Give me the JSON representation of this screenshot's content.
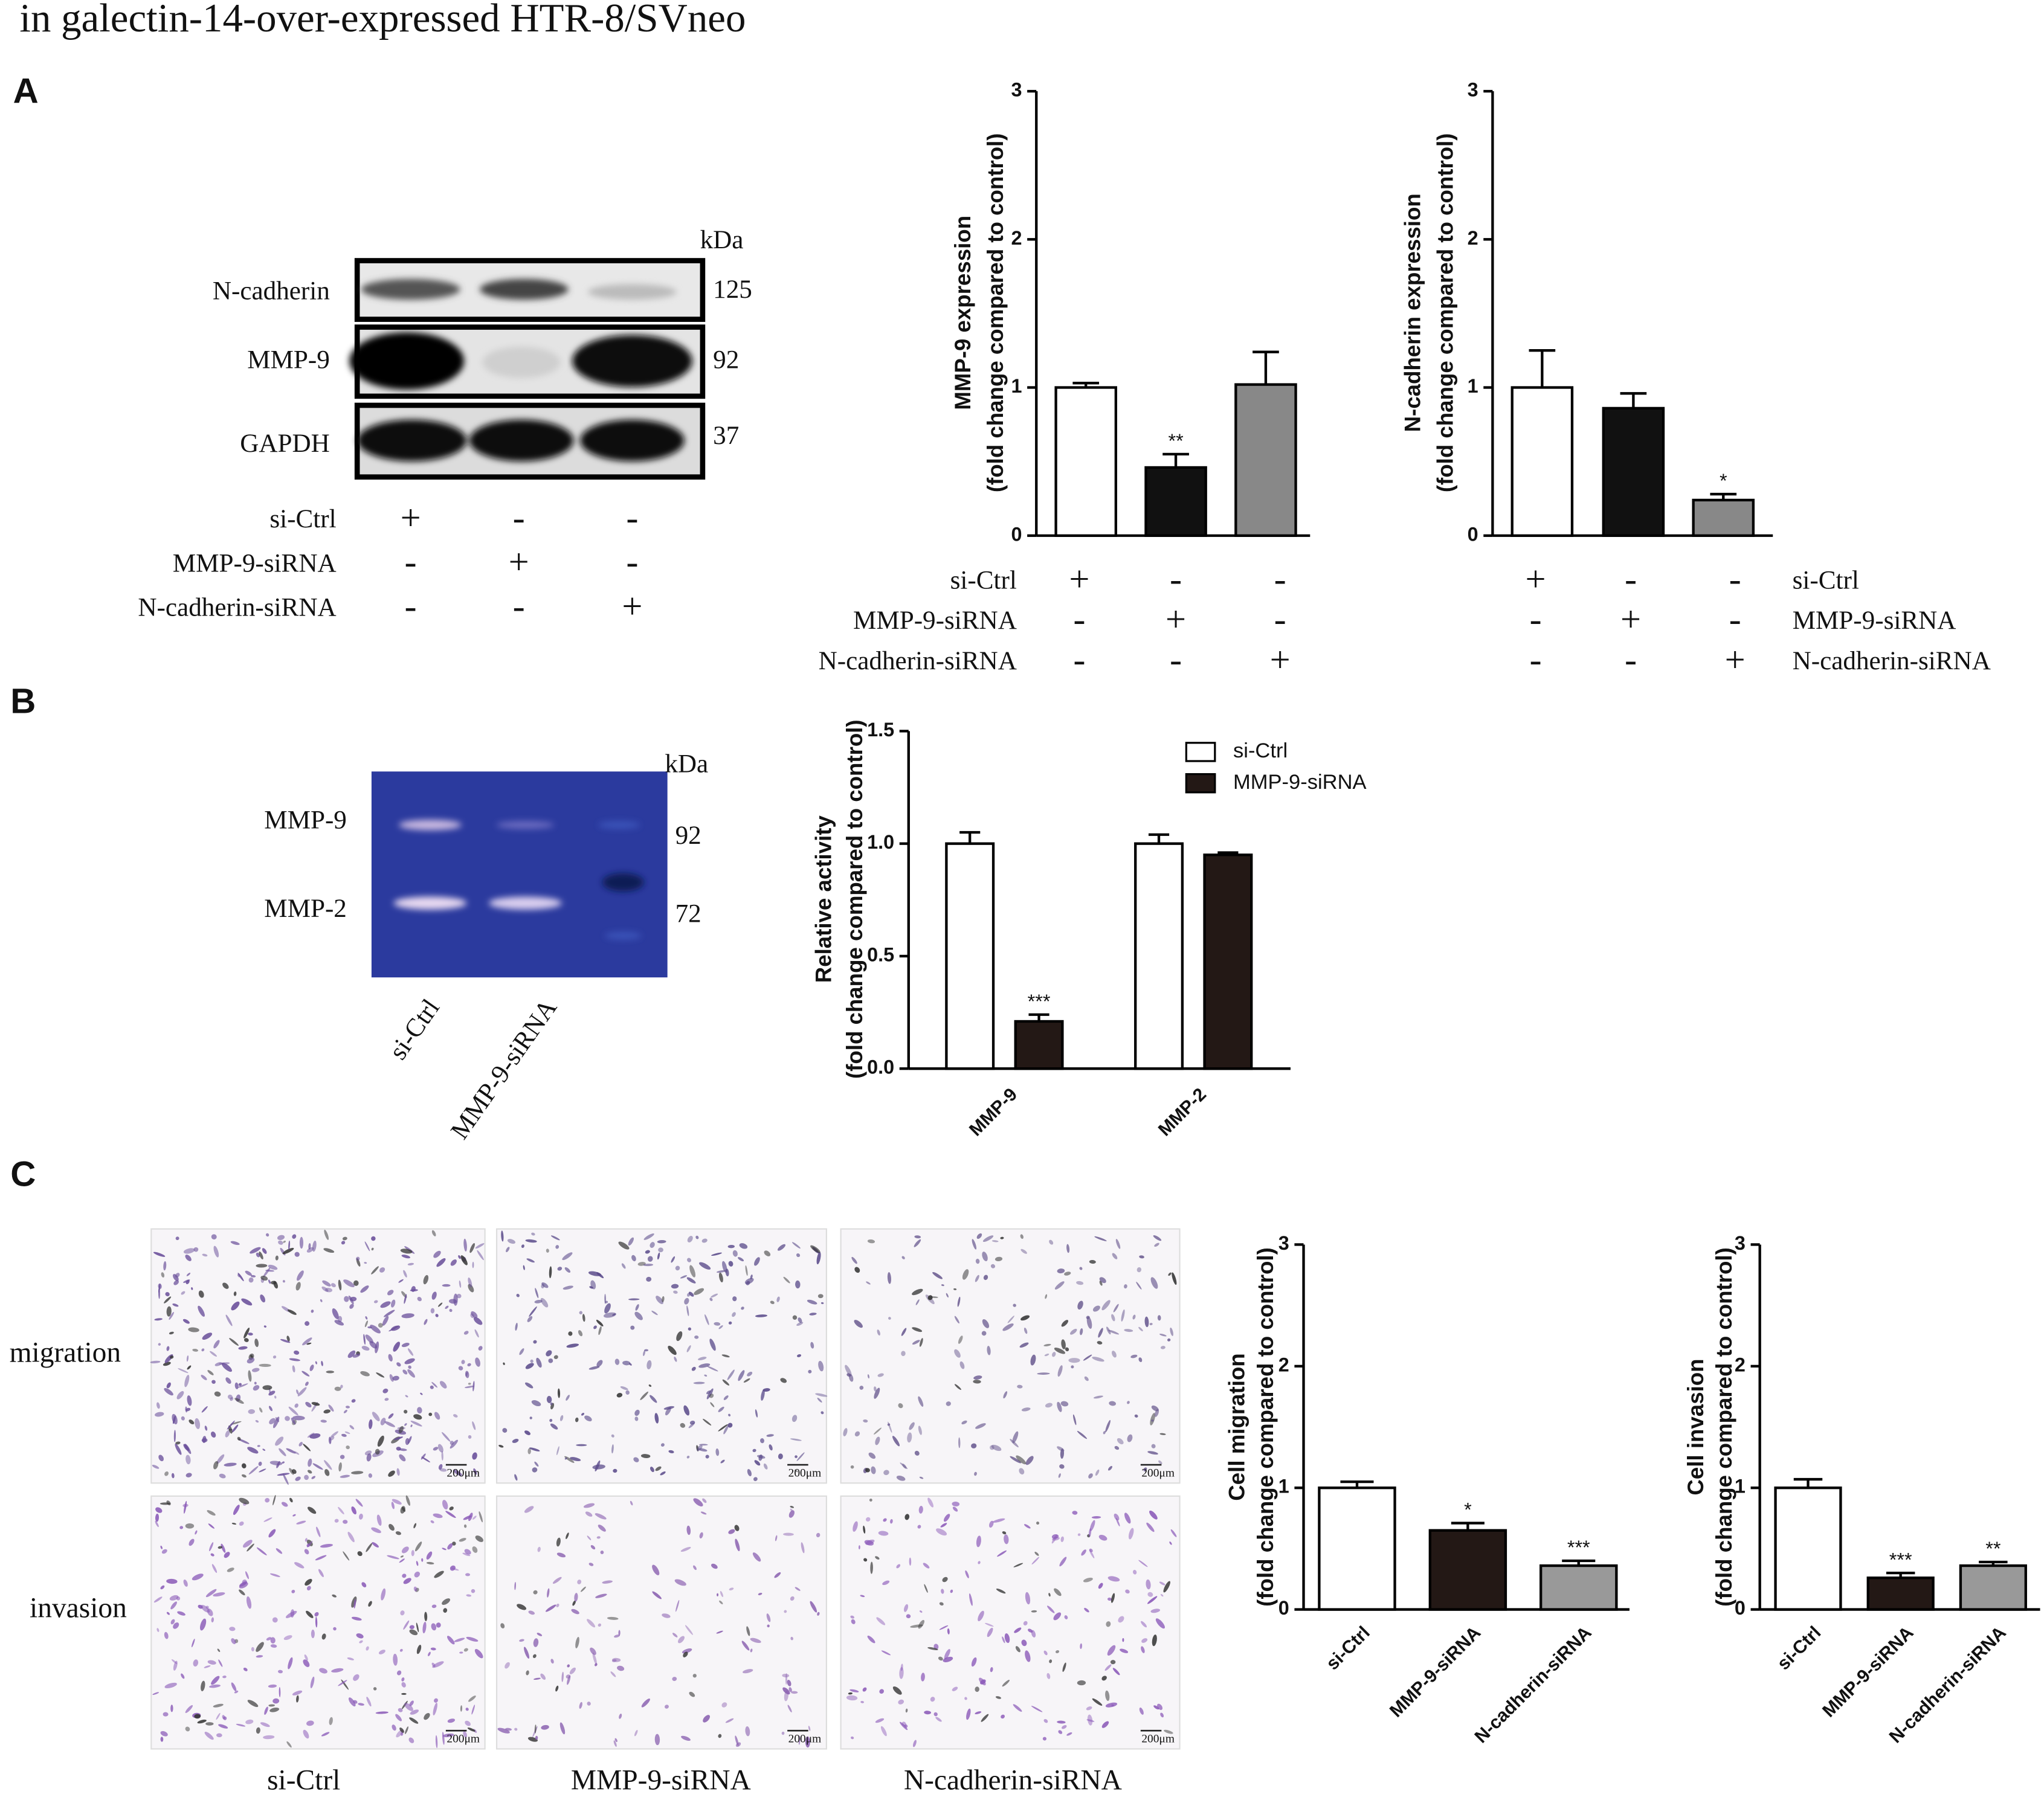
{
  "figure": {
    "title": "in galectin-14-over-expressed HTR-8/SVneo",
    "panels": [
      "A",
      "B",
      "C"
    ],
    "western_blot": {
      "kda_label": "kDa",
      "bands": [
        {
          "label": "N-cadherin",
          "kda": 125
        },
        {
          "label": "MMP-9",
          "kda": 92
        },
        {
          "label": "GAPDH",
          "kda": 37
        }
      ],
      "table": {
        "rows": [
          {
            "label": "si-Ctrl",
            "signs": [
              "+",
              "-",
              "-"
            ]
          },
          {
            "label": "MMP-9-siRNA",
            "signs": [
              "-",
              "+",
              "-"
            ]
          },
          {
            "label": "N-cadherin-siRNA",
            "signs": [
              "-",
              "-",
              "+"
            ]
          }
        ]
      }
    },
    "zymography": {
      "kda_label": "kDa",
      "bands": [
        {
          "label": "MMP-9",
          "kda": 92
        },
        {
          "label": "MMP-2",
          "kda": 72
        }
      ],
      "lanes": [
        "si-Ctrl",
        "MMP-9-siRNA"
      ]
    },
    "transwell": {
      "rows": [
        "migration",
        "invasion"
      ],
      "columns": [
        "si-Ctrl",
        "MMP-9-siRNA",
        "N-cadherin-siRNA"
      ],
      "scale_bar": "200μm"
    }
  },
  "chart_data": [
    {
      "type": "bar",
      "y_label": [
        "MMP-9 expression",
        "(fold change compared to control)"
      ],
      "values": [
        1.0,
        0.46,
        1.02
      ],
      "errors": [
        0.03,
        0.09,
        0.22
      ],
      "colors": [
        "#ffffff",
        "#111111",
        "#888888"
      ],
      "annotations": [
        null,
        "**",
        null
      ],
      "ylim": [
        0,
        3
      ],
      "yticks": [
        0,
        1,
        2,
        3
      ],
      "treatment_table": {
        "rows": [
          {
            "label": "si-Ctrl",
            "signs": [
              "+",
              "-",
              "-"
            ]
          },
          {
            "label": "MMP-9-siRNA",
            "signs": [
              "-",
              "+",
              "-"
            ]
          },
          {
            "label": "N-cadherin-siRNA",
            "signs": [
              "-",
              "-",
              "+"
            ]
          }
        ]
      }
    },
    {
      "type": "bar",
      "y_label": [
        "N-cadherin expression",
        "(fold change compared to control)"
      ],
      "values": [
        1.0,
        0.86,
        0.24
      ],
      "errors": [
        0.25,
        0.1,
        0.04
      ],
      "colors": [
        "#ffffff",
        "#111111",
        "#888888"
      ],
      "annotations": [
        null,
        null,
        "*"
      ],
      "ylim": [
        0,
        3
      ],
      "yticks": [
        0,
        1,
        2,
        3
      ],
      "treatment_table": {
        "rows": [
          {
            "label": "si-Ctrl",
            "signs": [
              "+",
              "-",
              "-"
            ]
          },
          {
            "label": "MMP-9-siRNA",
            "signs": [
              "-",
              "+",
              "-"
            ]
          },
          {
            "label": "N-cadherin-siRNA",
            "signs": [
              "-",
              "-",
              "+"
            ]
          }
        ]
      }
    },
    {
      "type": "bar",
      "y_label": [
        "Relative activity",
        "(fold change compared to control)"
      ],
      "categories": [
        "MMP-9",
        "MMP-2"
      ],
      "series": [
        {
          "name": "si-Ctrl",
          "color": "#ffffff",
          "values": [
            1.0,
            1.0
          ],
          "errors": [
            0.05,
            0.04
          ],
          "annotations": [
            null,
            null
          ]
        },
        {
          "name": "MMP-9-siRNA",
          "color": "#231815",
          "values": [
            0.21,
            0.95
          ],
          "errors": [
            0.03,
            0.01
          ],
          "annotations": [
            "***",
            null
          ]
        }
      ],
      "ylim": [
        0,
        1.5
      ],
      "yticks": [
        {
          "value": 0,
          "label": "0.0"
        },
        {
          "value": 0.5,
          "label": "0.5"
        },
        {
          "value": 1,
          "label": "1.0"
        },
        {
          "value": 1.5,
          "label": "1.5"
        }
      ],
      "legend": "top-right"
    },
    {
      "type": "bar",
      "y_label": [
        "Cell migration",
        "(fold change compared to control)"
      ],
      "categories": [
        "si-Ctrl",
        "MMP-9-siRNA",
        "N-cadherin-siRNA"
      ],
      "values": [
        1.0,
        0.65,
        0.36
      ],
      "errors": [
        0.05,
        0.06,
        0.04
      ],
      "colors": [
        "#ffffff",
        "#231815",
        "#999999"
      ],
      "annotations": [
        null,
        "*",
        "***"
      ],
      "ylim": [
        0,
        3
      ],
      "yticks": [
        0,
        1,
        2,
        3
      ]
    },
    {
      "type": "bar",
      "y_label": [
        "Cell invasion",
        "(fold change compared to control)"
      ],
      "categories": [
        "si-Ctrl",
        "MMP-9-siRNA",
        "N-cadherin-siRNA"
      ],
      "values": [
        1.0,
        0.26,
        0.36
      ],
      "errors": [
        0.07,
        0.04,
        0.03
      ],
      "colors": [
        "#ffffff",
        "#231815",
        "#999999"
      ],
      "annotations": [
        null,
        "***",
        "**"
      ],
      "ylim": [
        0,
        3
      ],
      "yticks": [
        0,
        1,
        2,
        3
      ]
    }
  ]
}
